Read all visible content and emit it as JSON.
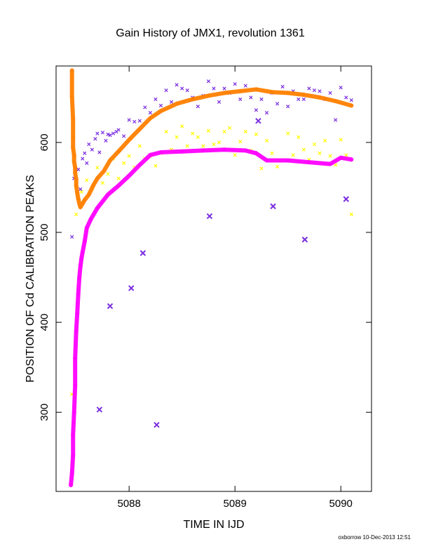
{
  "chart_data": {
    "type": "scatter",
    "title": "Gain History of JMX1, revolution 1361",
    "xlabel": "TIME IN IJD",
    "ylabel": "POSITION OF Cd CALIBRATION PEAKS",
    "footer": "oxborrow 10-Dec-2013 12:51",
    "xlim": [
      5087.31,
      5090.29
    ],
    "ylim": [
      212,
      685
    ],
    "xticks": [
      5088,
      5089,
      5090
    ],
    "yticks": [
      300,
      400,
      500,
      600
    ],
    "grid": false,
    "legend": "none",
    "colors": {
      "orange": "#ff8000",
      "magenta": "#ff00ff",
      "purple": "#7b2ee0",
      "yellow": "#ffff00"
    },
    "series": [
      {
        "color": "orange",
        "marker": "plus-line",
        "x": [
          5087.46,
          5087.46,
          5087.47,
          5087.47,
          5087.47,
          5087.48,
          5087.48,
          5087.49,
          5087.49,
          5087.5,
          5087.5,
          5087.51,
          5087.52,
          5087.53,
          5087.54,
          5087.56,
          5087.58,
          5087.62,
          5087.66,
          5087.7,
          5087.76,
          5087.82,
          5087.9,
          5088.0,
          5088.1,
          5088.2,
          5088.3,
          5088.45,
          5088.6,
          5088.75,
          5088.9,
          5089.05,
          5089.2,
          5089.35,
          5089.5,
          5089.65,
          5089.8,
          5089.95,
          5090.1
        ],
        "y": [
          680,
          651,
          626,
          606,
          594,
          586,
          579,
          572,
          566,
          559,
          552,
          544,
          537,
          532,
          528,
          532,
          536,
          542,
          552,
          560,
          568,
          580,
          590,
          603,
          615,
          627,
          635,
          643,
          648,
          652,
          655,
          657,
          659,
          656,
          655,
          653,
          650,
          646,
          641
        ]
      },
      {
        "color": "magenta",
        "marker": "plus-line",
        "x": [
          5087.45,
          5087.46,
          5087.47,
          5087.47,
          5087.48,
          5087.49,
          5087.49,
          5087.5,
          5087.51,
          5087.52,
          5087.53,
          5087.54,
          5087.55,
          5087.56,
          5087.58,
          5087.6,
          5087.64,
          5087.7,
          5087.8,
          5087.9,
          5088.0,
          5088.1,
          5088.2,
          5088.3,
          5088.5,
          5088.7,
          5088.9,
          5089.1,
          5089.2,
          5089.3,
          5089.5,
          5089.7,
          5089.9,
          5090.0,
          5090.1
        ],
        "y": [
          219,
          232,
          252,
          275,
          300,
          330,
          360,
          390,
          410,
          432,
          450,
          462,
          471,
          478,
          490,
          505,
          515,
          527,
          542,
          552,
          563,
          575,
          586,
          589,
          590,
          591,
          592,
          591,
          588,
          580,
          580,
          578,
          576,
          583,
          581
        ]
      },
      {
        "color": "purple",
        "marker": "x",
        "x": [
          5087.46,
          5087.48,
          5087.5,
          5087.52,
          5087.54,
          5087.56,
          5087.58,
          5087.6,
          5087.62,
          5087.65,
          5087.68,
          5087.7,
          5087.72,
          5087.75,
          5087.78,
          5087.8,
          5087.82,
          5087.85,
          5087.88,
          5087.9,
          5087.95,
          5088.0,
          5088.05,
          5088.1,
          5088.15,
          5088.2,
          5088.25,
          5088.3,
          5088.35,
          5088.4,
          5088.45,
          5088.5,
          5088.55,
          5088.6,
          5088.65,
          5088.7,
          5088.75,
          5088.8,
          5088.85,
          5088.9,
          5088.95,
          5089.0,
          5089.05,
          5089.1,
          5089.15,
          5089.2,
          5089.25,
          5089.3,
          5089.35,
          5089.4,
          5089.45,
          5089.5,
          5089.55,
          5089.6,
          5089.65,
          5089.7,
          5089.75,
          5089.8,
          5089.85,
          5089.9,
          5089.95,
          5090.0,
          5090.05,
          5090.1,
          5087.72,
          5087.82,
          5088.02,
          5088.13,
          5088.26,
          5088.76,
          5089.22,
          5089.36,
          5089.66,
          5090.05
        ],
        "y": [
          495,
          560,
          570,
          570,
          548,
          582,
          588,
          577,
          598,
          592,
          604,
          610,
          589,
          611,
          602,
          609,
          608,
          610,
          612,
          614,
          607,
          625,
          623,
          624,
          639,
          633,
          648,
          641,
          658,
          645,
          664,
          660,
          658,
          650,
          640,
          652,
          668,
          660,
          645,
          660,
          655,
          665,
          648,
          663,
          650,
          636,
          648,
          633,
          655,
          643,
          662,
          640,
          657,
          648,
          648,
          660,
          658,
          657,
          648,
          655,
          625,
          661,
          650,
          647,
          303,
          418,
          438,
          477,
          286,
          518,
          624,
          529,
          492,
          537
        ],
        "big_x": [
          5087.72,
          5087.82,
          5088.02,
          5088.13,
          5088.26,
          5088.76,
          5089.22,
          5089.36,
          5089.66,
          5090.05
        ]
      },
      {
        "color": "yellow",
        "marker": "x",
        "x": [
          5087.46,
          5087.5,
          5087.55,
          5087.6,
          5087.65,
          5087.7,
          5087.75,
          5087.8,
          5087.85,
          5087.9,
          5087.95,
          5088.0,
          5088.05,
          5088.1,
          5088.15,
          5088.2,
          5088.25,
          5088.3,
          5088.35,
          5088.4,
          5088.45,
          5088.5,
          5088.55,
          5088.6,
          5088.65,
          5088.7,
          5088.75,
          5088.8,
          5088.85,
          5088.9,
          5088.95,
          5089.0,
          5089.05,
          5089.1,
          5089.15,
          5089.2,
          5089.25,
          5089.3,
          5089.35,
          5089.4,
          5089.45,
          5089.5,
          5089.55,
          5089.6,
          5089.65,
          5089.7,
          5089.75,
          5089.8,
          5089.85,
          5089.9,
          5089.95,
          5090.0,
          5090.05,
          5090.1
        ],
        "y": [
          320,
          520,
          545,
          558,
          548,
          572,
          555,
          565,
          582,
          560,
          577,
          585,
          572,
          596,
          582,
          585,
          574,
          588,
          612,
          592,
          606,
          618,
          596,
          610,
          606,
          596,
          613,
          598,
          600,
          612,
          616,
          586,
          601,
          612,
          591,
          609,
          571,
          602,
          588,
          573,
          580,
          610,
          586,
          606,
          592,
          581,
          598,
          588,
          602,
          585,
          575,
          603,
          586,
          520
        ]
      }
    ]
  }
}
